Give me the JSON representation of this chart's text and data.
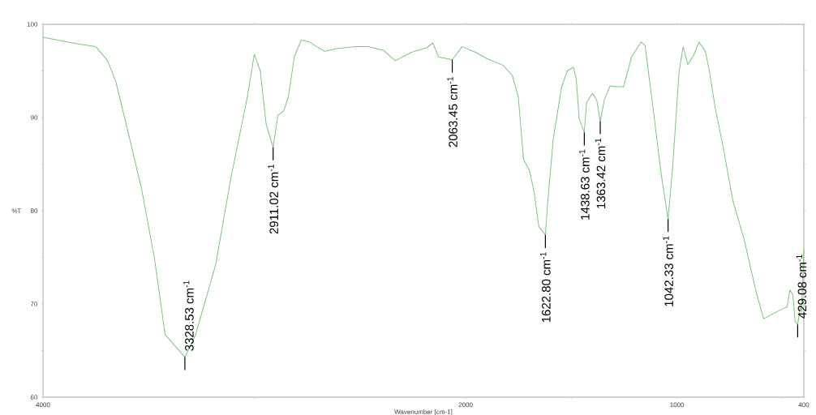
{
  "chart_data": {
    "type": "line",
    "xlabel": "Wavenumber [cm-1]",
    "ylabel": "%T",
    "xlim": [
      4000,
      400
    ],
    "ylim": [
      60,
      100
    ],
    "xticks": [
      4000,
      {
        "value": 3000,
        "label": null
      },
      2000,
      {
        "value": 1500,
        "label": null
      },
      1000,
      {
        "value": 500,
        "label": null
      },
      400
    ],
    "yticks": [
      60,
      {
        "value": 65,
        "label": null
      },
      70,
      {
        "value": 75,
        "label": null
      },
      80,
      {
        "value": 85,
        "label": null
      },
      90,
      {
        "value": 95,
        "label": null
      },
      100
    ],
    "series": [
      {
        "color": "#7dc47d",
        "x": [
          4000,
          3833,
          3750,
          3694,
          3656,
          3600,
          3533,
          3472,
          3422,
          3328.53,
          3278,
          3183,
          3111,
          3033,
          3000,
          2972,
          2944,
          2911.02,
          2889,
          2861,
          2839,
          2811,
          2778,
          2739,
          2667,
          2611,
          2517,
          2461,
          2389,
          2333,
          2256,
          2183,
          2156,
          2128,
          2063.45,
          2017,
          1953,
          1898,
          1823,
          1779,
          1751,
          1726,
          1698,
          1676,
          1654,
          1622.8,
          1613,
          1585,
          1546,
          1519,
          1491,
          1477,
          1463,
          1438.63,
          1428,
          1400,
          1380,
          1363.42,
          1344,
          1317,
          1289,
          1253,
          1215,
          1170,
          1151,
          1115,
          1076,
          1042.33,
          1021,
          990,
          971,
          949,
          921,
          896,
          866,
          847,
          819,
          783,
          736,
          681,
          626,
          590,
          551,
          507,
          479,
          466,
          452,
          441,
          429.08,
          417,
          411,
          400
        ],
        "values": [
          98.6,
          97.9,
          97.6,
          96.1,
          93.9,
          88.7,
          82.3,
          74.8,
          66.7,
          64.3,
          66.7,
          74.2,
          83.5,
          92.2,
          96.8,
          95.0,
          89.3,
          86.8,
          90.2,
          90.7,
          92.2,
          96.5,
          98.3,
          98.1,
          97.1,
          97.4,
          97.6,
          97.6,
          97.2,
          96.1,
          97.0,
          97.5,
          98.0,
          96.5,
          96.2,
          97.6,
          97.0,
          96.3,
          95.6,
          94.5,
          92.2,
          85.5,
          84.3,
          82.0,
          78.3,
          77.4,
          80.6,
          87.8,
          93.3,
          95.0,
          95.4,
          94.2,
          89.9,
          88.4,
          91.6,
          92.6,
          91.9,
          89.6,
          91.9,
          93.4,
          93.3,
          93.3,
          96.5,
          98.1,
          97.7,
          91.3,
          84.1,
          79.1,
          84.6,
          95.0,
          97.6,
          95.7,
          96.7,
          98.1,
          97.1,
          95.0,
          91.0,
          87.0,
          81.1,
          76.8,
          71.3,
          68.4,
          68.9,
          69.4,
          69.7,
          71.5,
          71.0,
          68.1,
          67.8,
          69.6,
          69.1,
          75.9
        ]
      }
    ],
    "annotations": [
      {
        "text": "3328.53 cm$^{-1}$",
        "x": 3328.53,
        "y": 64.3
      },
      {
        "text": "2911.02 cm$^{-1}$",
        "x": 2911.02,
        "y": 86.8
      },
      {
        "text": "2063.45 cm$^{-1}$",
        "x": 2063.45,
        "y": 96.2
      },
      {
        "text": "1622.80  cm$^{-1}$",
        "x": 1622.8,
        "y": 77.4
      },
      {
        "text": "1438.63 cm$^{-1}$",
        "x": 1438.63,
        "y": 88.4
      },
      {
        "text": "1363.42 cm$^{-1}$",
        "x": 1363.42,
        "y": 89.6
      },
      {
        "text": "1042.33  cm$^{-1}$",
        "x": 1042.33,
        "y": 79.1
      },
      {
        "text": "429.08  cm$^{-1}$",
        "x": 429.08,
        "y": 67.8
      }
    ]
  }
}
